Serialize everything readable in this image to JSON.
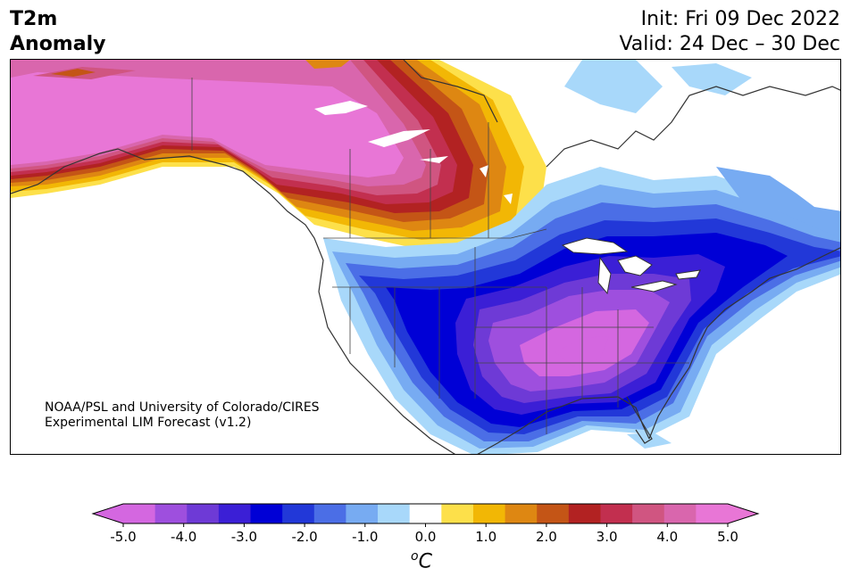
{
  "header": {
    "title_line1": "T2m",
    "title_line2": "Anomaly",
    "init": "Init: Fri 09 Dec 2022",
    "valid": "Valid: 24 Dec – 30 Dec"
  },
  "map": {
    "credit_line1": "NOAA/PSL and University of Colorado/CIRES",
    "credit_line2": "Experimental LIM Forecast (v1.2)"
  },
  "colorbar": {
    "unit_base": "C",
    "unit_sup": "o",
    "ticks": [
      "-5.0",
      "-4.0",
      "-3.0",
      "-2.0",
      "-1.0",
      "0.0",
      "1.0",
      "2.0",
      "3.0",
      "4.0",
      "5.0"
    ],
    "colors": [
      "#d467e0",
      "#9e4fde",
      "#6e3ad6",
      "#3b1fd6",
      "#0000d6",
      "#2238d8",
      "#4b6ee6",
      "#77abf2",
      "#a8d8fa",
      "#ffffff",
      "#fde04a",
      "#f2b705",
      "#de8712",
      "#c45516",
      "#b22222",
      "#c22f4f",
      "#d05581",
      "#d966ad",
      "#e876d6"
    ]
  }
}
